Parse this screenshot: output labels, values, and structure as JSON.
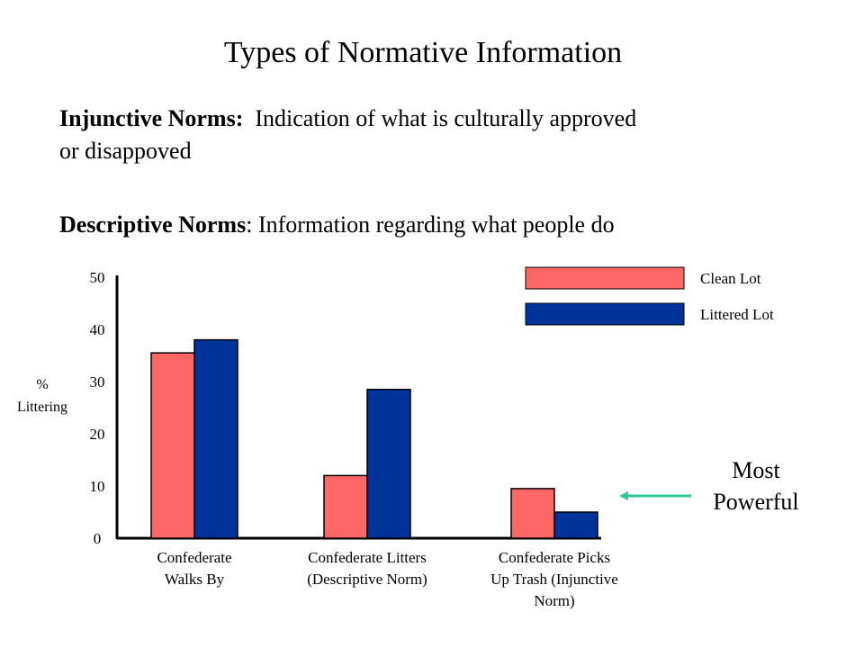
{
  "slide": {
    "title": "Types of Normative Information",
    "injunctive_term": "Injunctive Norms:",
    "injunctive_line1": "Indication of what is culturally approved",
    "injunctive_line2": "or disappoved",
    "descriptive_term": "Descriptive Norms",
    "descriptive_text": ": Information regarding what people do"
  },
  "annotation": {
    "lines": [
      "Most",
      "Powerful"
    ],
    "arrow_color": "#2ec79a"
  },
  "chart_data": {
    "type": "bar",
    "ylabel_lines": [
      "%",
      "Littering"
    ],
    "ylim": [
      0,
      50
    ],
    "yticks": [
      0,
      10,
      20,
      30,
      40,
      50
    ],
    "categories": [
      [
        "Confederate",
        "Walks By"
      ],
      [
        "Confederate Litters",
        "(Descriptive Norm)"
      ],
      [
        "Confederate Picks",
        "Up Trash (Injunctive",
        "Norm)"
      ]
    ],
    "series": [
      {
        "name": "Clean Lot",
        "color": "#ff6666",
        "values": [
          35.5,
          12,
          9.5
        ]
      },
      {
        "name": "Littered Lot",
        "color": "#003399",
        "values": [
          38,
          28.5,
          5
        ]
      }
    ],
    "legend": "top-right",
    "grid": false
  }
}
